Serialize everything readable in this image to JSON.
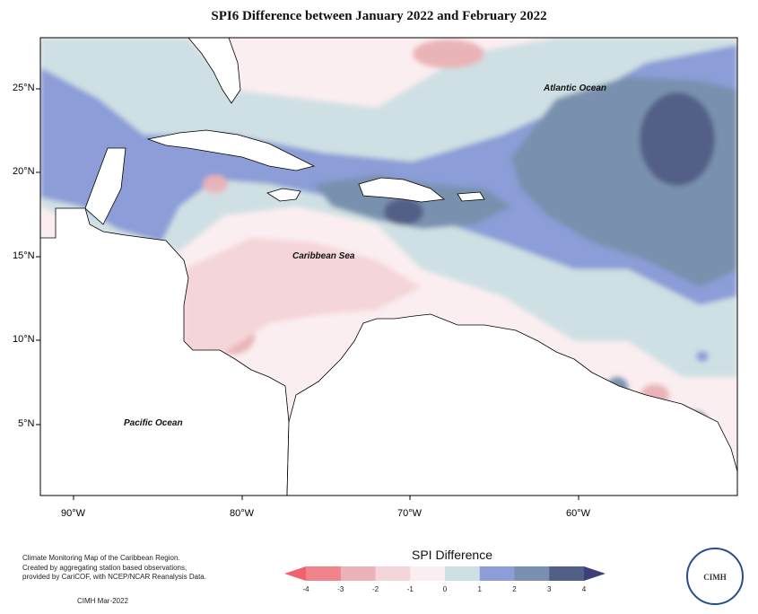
{
  "title": "SPI6 Difference between January 2022 and February 2022",
  "map_labels": {
    "atlantic": "Atlantic Ocean",
    "caribbean": "Caribbean Sea",
    "pacific": "Pacific Ocean"
  },
  "lat_ticks": [
    "25°N",
    "20°N",
    "15°N",
    "10°N",
    "5°N"
  ],
  "lon_ticks": [
    "90°W",
    "80°W",
    "70°W",
    "60°W"
  ],
  "legend": {
    "title": "SPI Difference",
    "ticks": [
      "-4",
      "-3",
      "-2",
      "-1",
      "0",
      "1",
      "2",
      "3",
      "4"
    ],
    "colors": [
      "#f0838b",
      "#e9b3b7",
      "#f4d5d9",
      "#fbeef0",
      "#cfe0e4",
      "#8c9dd7",
      "#7991ae",
      "#525f86"
    ]
  },
  "info_text": "Climate Monitoring Map of the Caribbean Region.\nCreated by aggregating station based observations,\nprovided by CariCOF, with NCEP/NCAR Reanalysis Data.",
  "credit": "CIMH Mar-2022",
  "logo_text": "CIMH",
  "colors": {
    "strong_wet": "#525f86",
    "wet": "#7991ae",
    "mod_wet": "#8c9dd7",
    "light_wet": "#cfe0e4",
    "light_dry": "#fbeef0",
    "mod_dry": "#f4d5d9",
    "dry": "#e9b3b7",
    "land": "#ffffff"
  }
}
